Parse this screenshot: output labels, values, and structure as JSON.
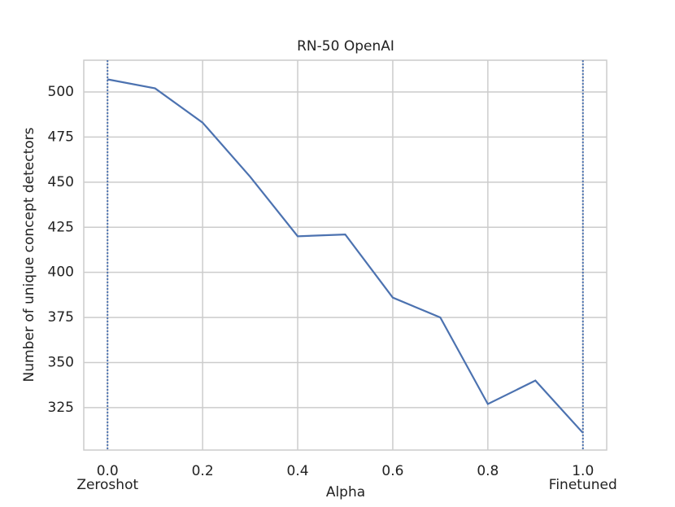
{
  "chart_data": {
    "type": "line",
    "title": "RN-50 OpenAI",
    "x_label": "Alpha",
    "y_label": "Number of unique concept detectors",
    "x": [
      0,
      0.1,
      0.2,
      0.3,
      0.4,
      0.5,
      0.6,
      0.7,
      0.8,
      0.9,
      1.0
    ],
    "series": [
      {
        "color": "#4c72b0",
        "values": [
          507,
          502,
          483,
          453,
          420,
          421,
          386,
          375,
          327,
          340,
          311
        ]
      }
    ],
    "xlim": [
      -0.05,
      1.05
    ],
    "ylim": [
      301.5,
      517.6
    ],
    "xticks": [
      {
        "value": 0,
        "label": "0.0"
      },
      0.2,
      0.4,
      0.6,
      0.8,
      {
        "value": 1,
        "label": "1.0"
      }
    ],
    "yticks": [
      325,
      350,
      375,
      400,
      425,
      450,
      475,
      500
    ],
    "grid": true,
    "vlines": [
      0,
      1
    ],
    "vline_color": "#4c72b0",
    "annotations": [
      {
        "text": "Zeroshot",
        "x": 0
      },
      {
        "text": "Finetuned",
        "x": 1
      }
    ]
  }
}
